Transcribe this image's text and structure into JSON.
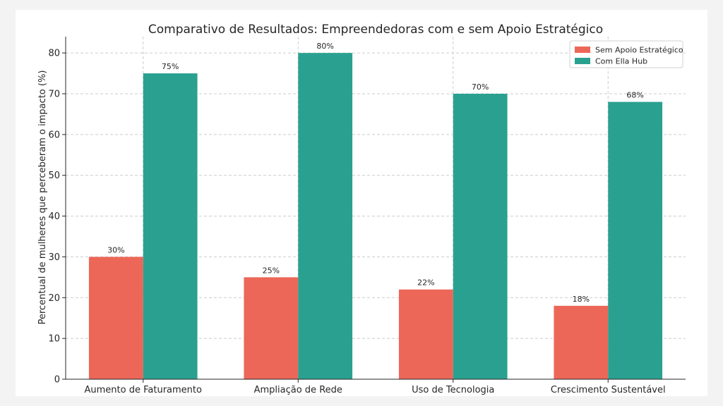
{
  "chart_data": {
    "type": "bar",
    "title": "Comparativo de Resultados: Empreendedoras com e sem Apoio Estratégico",
    "xlabel": "",
    "ylabel": "Percentual de mulheres que perceberam o impacto (%)",
    "categories": [
      "Aumento de Faturamento",
      "Ampliação de Rede",
      "Uso de Tecnologia",
      "Crescimento Sustentável"
    ],
    "series": [
      {
        "name": "Sem Apoio Estratégico",
        "values": [
          30,
          25,
          22,
          18
        ],
        "labels": [
          "30%",
          "25%",
          "22%",
          "18%"
        ],
        "color": "#ec6758"
      },
      {
        "name": "Com Ella Hub",
        "values": [
          75,
          80,
          70,
          68
        ],
        "labels": [
          "75%",
          "80%",
          "70%",
          "68%"
        ],
        "color": "#2aa190"
      }
    ],
    "ylim": [
      0,
      84
    ],
    "yticks": [
      0,
      10,
      20,
      30,
      40,
      50,
      60,
      70,
      80
    ],
    "grid": true,
    "legend_position": "top-right"
  }
}
